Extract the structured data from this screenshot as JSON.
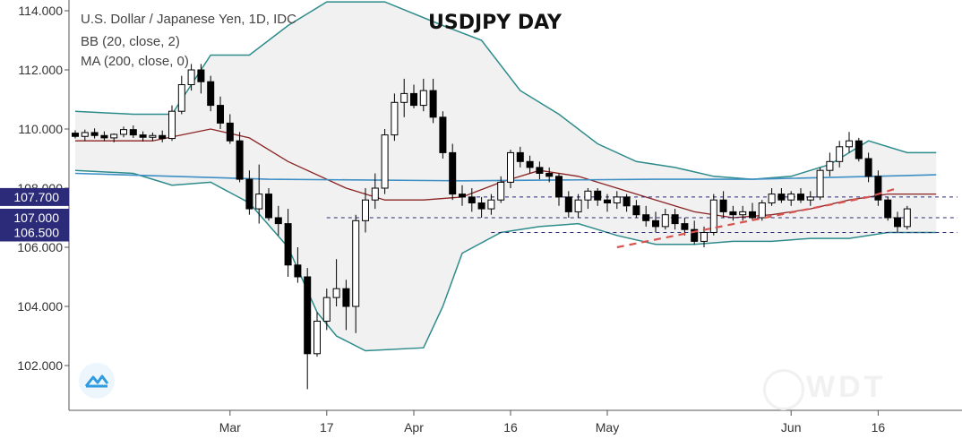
{
  "header": {
    "symbol_line": "U.S. Dollar / Japanese Yen, 1D, IDC",
    "bb_line": "BB (20, close, 2)",
    "ma_line": "MA (200, close, 0)",
    "title": "USDJPY DAY"
  },
  "watermark": "WDT",
  "colors": {
    "candle": "#000000",
    "bb_band": "#2e8b8b",
    "bb_basis": "#8b2323",
    "ma200": "#3d8fc4",
    "trendline": "#d9534f",
    "level_line": "#2b2b7a",
    "label_bg": "#2b2b7a"
  },
  "chart_data": {
    "type": "candlestick",
    "title": "USDJPY DAY",
    "y_axis": {
      "ticks": [
        "114.000",
        "112.000",
        "110.000",
        "108.000",
        "106.000",
        "104.000",
        "102.000"
      ],
      "tick_values": [
        114,
        112,
        110,
        108,
        106,
        104,
        102
      ],
      "ylim": [
        101.2,
        114.3
      ]
    },
    "x_axis": {
      "ticks": [
        "Mar",
        "17",
        "Apr",
        "16",
        "May",
        "Jun",
        "16"
      ],
      "tick_index": [
        16,
        26,
        35,
        45,
        55,
        74,
        83
      ],
      "count": 90
    },
    "price_labels": [
      {
        "text": "107.700",
        "value": 107.7
      },
      {
        "text": "107.000",
        "value": 107.0
      },
      {
        "text": "106.500",
        "value": 106.5
      }
    ],
    "levels": [
      {
        "value": 107.7,
        "from": 40
      },
      {
        "value": 107.0,
        "from": 26
      },
      {
        "value": 106.5,
        "from": 43
      }
    ],
    "trendline": [
      [
        56,
        106.0
      ],
      [
        82,
        107.7
      ],
      [
        85,
        108.0
      ]
    ],
    "ohlc": [
      [
        109.86,
        109.96,
        109.68,
        109.75
      ],
      [
        109.75,
        109.98,
        109.6,
        109.88
      ],
      [
        109.88,
        110.02,
        109.68,
        109.78
      ],
      [
        109.78,
        109.92,
        109.6,
        109.7
      ],
      [
        109.7,
        109.85,
        109.55,
        109.82
      ],
      [
        109.82,
        110.08,
        109.72,
        109.98
      ],
      [
        109.98,
        110.12,
        109.7,
        109.8
      ],
      [
        109.8,
        109.92,
        109.58,
        109.72
      ],
      [
        109.72,
        109.88,
        109.6,
        109.78
      ],
      [
        109.78,
        109.95,
        109.55,
        109.68
      ],
      [
        109.68,
        110.8,
        109.6,
        110.6
      ],
      [
        110.6,
        111.8,
        110.5,
        111.5
      ],
      [
        111.5,
        112.2,
        111.3,
        112.0
      ],
      [
        112.0,
        112.2,
        111.2,
        111.6
      ],
      [
        111.6,
        111.8,
        110.6,
        110.8
      ],
      [
        110.8,
        111.1,
        110.0,
        110.2
      ],
      [
        110.2,
        110.5,
        109.5,
        109.6
      ],
      [
        109.6,
        109.9,
        108.2,
        108.3
      ],
      [
        108.3,
        108.6,
        107.1,
        107.3
      ],
      [
        107.3,
        108.8,
        106.8,
        107.8
      ],
      [
        107.8,
        108.0,
        106.9,
        107.0
      ],
      [
        107.0,
        107.4,
        106.4,
        106.8
      ],
      [
        106.8,
        107.3,
        105.0,
        105.4
      ],
      [
        105.4,
        106.0,
        104.8,
        105.0
      ],
      [
        105.0,
        105.3,
        101.2,
        102.4
      ],
      [
        102.4,
        103.8,
        102.3,
        103.5
      ],
      [
        103.5,
        104.6,
        103.2,
        104.3
      ],
      [
        104.3,
        105.6,
        104.0,
        104.6
      ],
      [
        104.6,
        104.9,
        103.2,
        104.0
      ],
      [
        104.0,
        107.1,
        103.1,
        106.9
      ],
      [
        106.9,
        108.0,
        106.5,
        107.6
      ],
      [
        107.6,
        108.5,
        107.3,
        108.0
      ],
      [
        108.0,
        110.0,
        107.8,
        109.8
      ],
      [
        109.8,
        111.2,
        109.6,
        110.9
      ],
      [
        110.9,
        111.7,
        110.4,
        111.2
      ],
      [
        111.2,
        111.5,
        110.7,
        110.8
      ],
      [
        110.8,
        111.7,
        110.6,
        111.3
      ],
      [
        111.3,
        111.7,
        110.2,
        110.4
      ],
      [
        110.4,
        110.6,
        109.0,
        109.2
      ],
      [
        109.2,
        109.5,
        107.6,
        107.8
      ],
      [
        107.8,
        108.1,
        107.4,
        107.7
      ],
      [
        107.7,
        108.0,
        107.2,
        107.5
      ],
      [
        107.5,
        107.7,
        107.0,
        107.3
      ],
      [
        107.3,
        107.8,
        107.1,
        107.6
      ],
      [
        107.6,
        108.4,
        107.5,
        108.2
      ],
      [
        108.2,
        109.3,
        108.0,
        109.2
      ],
      [
        109.2,
        109.4,
        108.7,
        108.9
      ],
      [
        108.9,
        109.1,
        108.5,
        108.7
      ],
      [
        108.7,
        108.9,
        108.3,
        108.5
      ],
      [
        108.5,
        108.7,
        108.2,
        108.4
      ],
      [
        108.4,
        108.5,
        107.4,
        107.7
      ],
      [
        107.7,
        107.9,
        107.0,
        107.2
      ],
      [
        107.2,
        107.8,
        107.0,
        107.6
      ],
      [
        107.6,
        108.0,
        107.3,
        107.9
      ],
      [
        107.9,
        108.0,
        107.4,
        107.6
      ],
      [
        107.6,
        107.8,
        107.2,
        107.5
      ],
      [
        107.5,
        107.9,
        107.3,
        107.7
      ],
      [
        107.7,
        107.8,
        107.2,
        107.4
      ],
      [
        107.4,
        107.6,
        107.0,
        107.1
      ],
      [
        107.1,
        107.4,
        106.7,
        106.9
      ],
      [
        106.9,
        107.2,
        106.5,
        106.7
      ],
      [
        106.7,
        107.3,
        106.6,
        107.1
      ],
      [
        107.1,
        107.3,
        106.6,
        106.8
      ],
      [
        106.8,
        107.0,
        106.4,
        106.6
      ],
      [
        106.6,
        106.9,
        106.1,
        106.2
      ],
      [
        106.2,
        106.7,
        106.0,
        106.5
      ],
      [
        106.5,
        107.8,
        106.4,
        107.6
      ],
      [
        107.6,
        107.9,
        107.0,
        107.2
      ],
      [
        107.2,
        107.4,
        106.9,
        107.1
      ],
      [
        107.1,
        107.4,
        106.9,
        107.2
      ],
      [
        107.2,
        107.5,
        106.9,
        107.0
      ],
      [
        107.0,
        107.6,
        106.9,
        107.5
      ],
      [
        107.5,
        108.0,
        107.4,
        107.8
      ],
      [
        107.8,
        108.0,
        107.5,
        107.6
      ],
      [
        107.6,
        107.9,
        107.4,
        107.8
      ],
      [
        107.8,
        108.0,
        107.5,
        107.6
      ],
      [
        107.6,
        107.9,
        107.4,
        107.7
      ],
      [
        107.7,
        108.7,
        107.6,
        108.6
      ],
      [
        108.6,
        109.2,
        108.4,
        108.9
      ],
      [
        108.9,
        109.6,
        108.7,
        109.4
      ],
      [
        109.4,
        109.9,
        109.2,
        109.6
      ],
      [
        109.6,
        109.7,
        108.9,
        109.0
      ],
      [
        109.0,
        109.2,
        108.2,
        108.4
      ],
      [
        108.4,
        108.6,
        107.4,
        107.6
      ],
      [
        107.6,
        107.7,
        106.9,
        107.0
      ],
      [
        107.0,
        107.2,
        106.5,
        106.7
      ],
      [
        106.7,
        107.4,
        106.6,
        107.3
      ]
    ],
    "ma200": [
      [
        0,
        108.5
      ],
      [
        20,
        108.3
      ],
      [
        40,
        108.25
      ],
      [
        60,
        108.3
      ],
      [
        70,
        108.3
      ],
      [
        89,
        108.45
      ]
    ],
    "bb_basis": [
      [
        0,
        109.6
      ],
      [
        8,
        109.6
      ],
      [
        14,
        110.0
      ],
      [
        18,
        109.7
      ],
      [
        22,
        108.9
      ],
      [
        28,
        108.0
      ],
      [
        32,
        107.6
      ],
      [
        36,
        107.6
      ],
      [
        40,
        107.7
      ],
      [
        44,
        108.2
      ],
      [
        48,
        108.6
      ],
      [
        52,
        108.4
      ],
      [
        56,
        108.0
      ],
      [
        60,
        107.6
      ],
      [
        64,
        107.2
      ],
      [
        68,
        107.0
      ],
      [
        72,
        107.1
      ],
      [
        76,
        107.3
      ],
      [
        80,
        107.6
      ],
      [
        84,
        107.8
      ],
      [
        89,
        107.8
      ]
    ],
    "bb_upper": [
      [
        0,
        110.6
      ],
      [
        6,
        110.5
      ],
      [
        10,
        110.5
      ],
      [
        14,
        112.5
      ],
      [
        18,
        112.5
      ],
      [
        22,
        113.5
      ],
      [
        26,
        114.3
      ],
      [
        32,
        114.3
      ],
      [
        38,
        113.5
      ],
      [
        42,
        113.0
      ],
      [
        46,
        111.3
      ],
      [
        50,
        110.5
      ],
      [
        54,
        109.5
      ],
      [
        58,
        108.9
      ],
      [
        62,
        108.7
      ],
      [
        66,
        108.4
      ],
      [
        70,
        108.3
      ],
      [
        74,
        108.4
      ],
      [
        78,
        108.8
      ],
      [
        82,
        109.6
      ],
      [
        86,
        109.2
      ],
      [
        89,
        109.2
      ]
    ],
    "bb_lower": [
      [
        0,
        108.6
      ],
      [
        6,
        108.5
      ],
      [
        10,
        108.1
      ],
      [
        14,
        108.2
      ],
      [
        18,
        107.5
      ],
      [
        22,
        106.0
      ],
      [
        25,
        103.8
      ],
      [
        27,
        103.0
      ],
      [
        30,
        102.5
      ],
      [
        36,
        102.6
      ],
      [
        38,
        104.0
      ],
      [
        40,
        105.8
      ],
      [
        44,
        106.5
      ],
      [
        48,
        106.7
      ],
      [
        52,
        106.8
      ],
      [
        56,
        106.4
      ],
      [
        60,
        106.1
      ],
      [
        64,
        106.1
      ],
      [
        68,
        106.2
      ],
      [
        72,
        106.2
      ],
      [
        76,
        106.3
      ],
      [
        80,
        106.3
      ],
      [
        84,
        106.5
      ],
      [
        89,
        106.5
      ]
    ]
  }
}
